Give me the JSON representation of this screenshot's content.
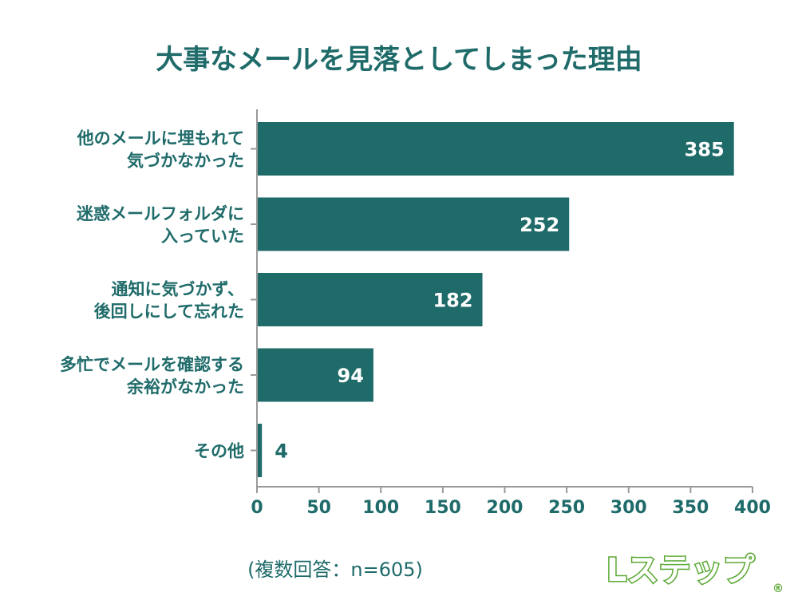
{
  "chart_data": {
    "type": "bar",
    "orientation": "horizontal",
    "title": "大事なメールを見落としてしまった理由",
    "categories": [
      [
        "他のメールに埋もれて",
        "気づかなかった"
      ],
      [
        "迷惑メールフォルダに",
        "入っていた"
      ],
      [
        "通知に気づかず、",
        "後回しにして忘れた"
      ],
      [
        "多忙でメールを確認する",
        "余裕がなかった"
      ],
      [
        "その他"
      ]
    ],
    "values": [
      385,
      252,
      182,
      94,
      4
    ],
    "xlim": [
      0,
      400
    ],
    "xticks": [
      0,
      50,
      100,
      150,
      200,
      250,
      300,
      350,
      400
    ],
    "grid": false,
    "bar_color": "#1f6b6a",
    "text_color": "#1f6b6a",
    "footnote": "(複数回答：n=605)"
  },
  "logo": {
    "text": "Lステップ",
    "mark": "®",
    "color": "#5aa832"
  }
}
